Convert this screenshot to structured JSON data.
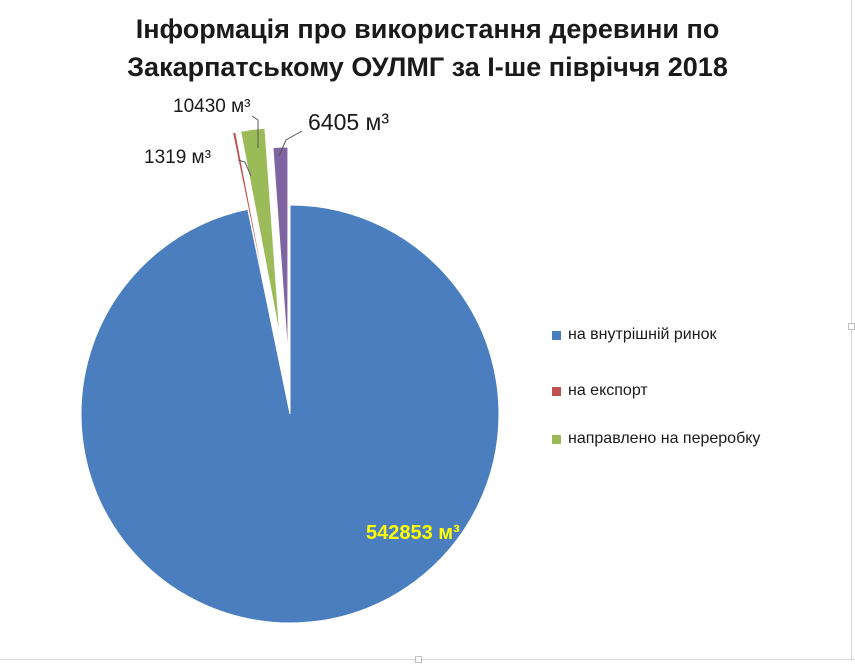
{
  "chart_data": {
    "type": "pie",
    "title_lines": [
      "Інформація про використання деревини  по",
      "Закарпатському ОУЛМГ за І-ше півріччя 2018"
    ],
    "unit": "м³",
    "slices": [
      {
        "label": "на внутрішній ринок",
        "value": 542853,
        "display": "542853 м³",
        "color": "#4a7ebf"
      },
      {
        "label": "на експорт",
        "value": 1319,
        "display": "1319 м³",
        "color": "#c0504d"
      },
      {
        "label": "направлено на переробку",
        "value": 10430,
        "display": "10430 м³",
        "color": "#9bbb59"
      },
      {
        "label": "",
        "value": 6405,
        "display": "6405 м³",
        "color": "#8064a2"
      }
    ],
    "legend": [
      {
        "label": "на внутрішній ринок",
        "color": "#4a7ebf"
      },
      {
        "label": "на експорт",
        "color": "#c0504d"
      },
      {
        "label": "направлено на переробку",
        "color": "#9bbb59"
      }
    ],
    "legend_position": "right",
    "main_label_color": "#ffff00"
  }
}
